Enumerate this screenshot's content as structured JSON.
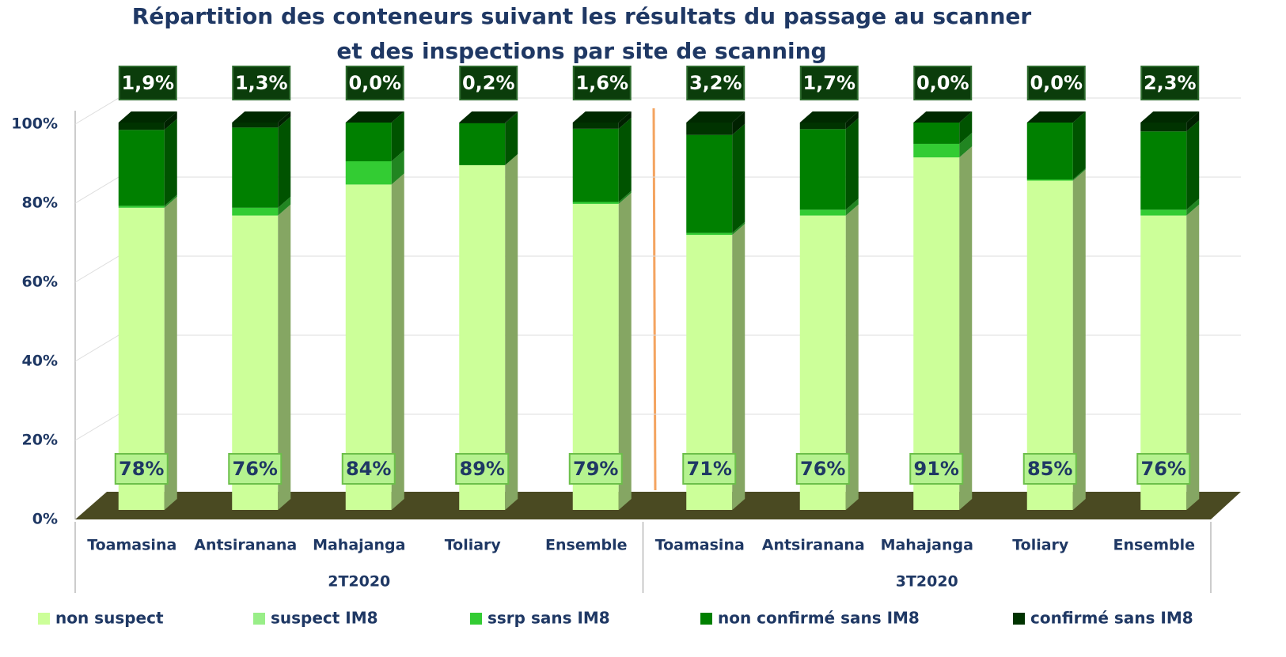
{
  "chart_data": {
    "type": "bar3d_stacked",
    "title": "Répartition des conteneurs suivant les résultats du passage au scanner",
    "subtitle": "et des inspections par site de scanning",
    "categories": [
      "Toamasina",
      "Antsiranana",
      "Mahajanga",
      "Toliary",
      "Ensemble",
      "Toamasina",
      "Antsiranana",
      "Mahajanga",
      "Toliary",
      "Ensemble"
    ],
    "groups": [
      {
        "label": "2T2020",
        "count": 5
      },
      {
        "label": "3T2020",
        "count": 5
      }
    ],
    "series": [
      {
        "name": "non suspect",
        "color": "#ccff99",
        "values": [
          78,
          76,
          84,
          89,
          79,
          71,
          76,
          91,
          85,
          76
        ],
        "value_labels": [
          "78%",
          "76%",
          "84%",
          "89%",
          "79%",
          "71%",
          "76%",
          "91%",
          "85%",
          "76%"
        ]
      },
      {
        "name": "suspect IM8",
        "color": "#99ee88",
        "values": [
          0,
          0,
          0,
          0,
          0,
          0,
          0,
          0,
          0,
          0
        ]
      },
      {
        "name": "ssrp sans IM8",
        "color": "#33cc33",
        "values": [
          0.5,
          2,
          6,
          0,
          0.5,
          0.5,
          1.5,
          3.5,
          0.3,
          1.5
        ]
      },
      {
        "name": "non confirmé sans IM8",
        "color": "#008000",
        "values": [
          19.6,
          20.7,
          10,
          10.8,
          18.9,
          25.3,
          20.8,
          5.5,
          14.7,
          20.2
        ]
      },
      {
        "name": "confirmé sans IM8",
        "color": "#003300",
        "values": [
          1.9,
          1.3,
          0.0,
          0.2,
          1.6,
          3.2,
          1.7,
          0.0,
          0.0,
          2.3
        ],
        "value_labels": [
          "1,9%",
          "1,3%",
          "0,0%",
          "0,2%",
          "1,6%",
          "3,2%",
          "1,7%",
          "0,0%",
          "0,0%",
          "2,3%"
        ]
      }
    ],
    "ylim": [
      0,
      100
    ],
    "yticks": [
      {
        "value": 0,
        "label": "0%"
      },
      {
        "value": 20,
        "label": "20%"
      },
      {
        "value": 40,
        "label": "40%"
      },
      {
        "value": 60,
        "label": "60%"
      },
      {
        "value": 80,
        "label": "80%"
      },
      {
        "value": 100,
        "label": "100%"
      }
    ],
    "grid": true,
    "legend": "bottom"
  }
}
